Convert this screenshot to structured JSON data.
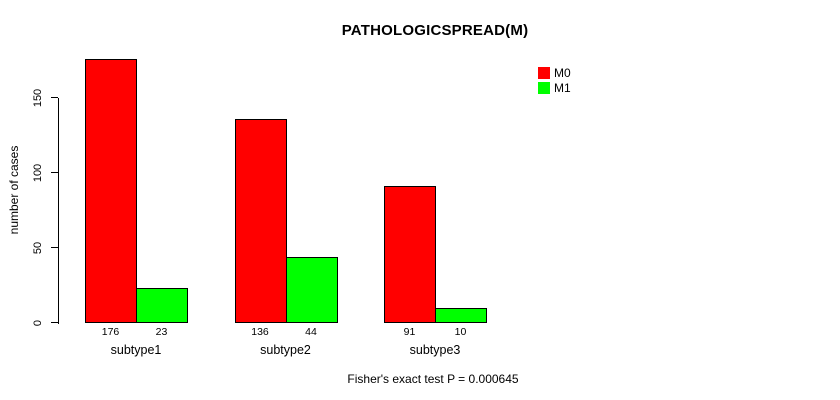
{
  "chart_data": {
    "type": "bar",
    "title": "PATHOLOGICSPREAD(M)",
    "xlabel": "",
    "ylabel": "number of cases",
    "categories": [
      "subtype1",
      "subtype2",
      "subtype3"
    ],
    "series": [
      {
        "name": "M0",
        "color": "#FF0000",
        "values": [
          176,
          136,
          91
        ]
      },
      {
        "name": "M1",
        "color": "#00FF00",
        "values": [
          23,
          44,
          10
        ]
      }
    ],
    "yticks": [
      0,
      50,
      100,
      150
    ],
    "ylim": [
      0,
      176
    ],
    "grid": false,
    "legend_position": "top-right",
    "annotation": "Fisher's exact test P = 0.000645",
    "background": "#ffffff",
    "axis_color": "#000000"
  }
}
